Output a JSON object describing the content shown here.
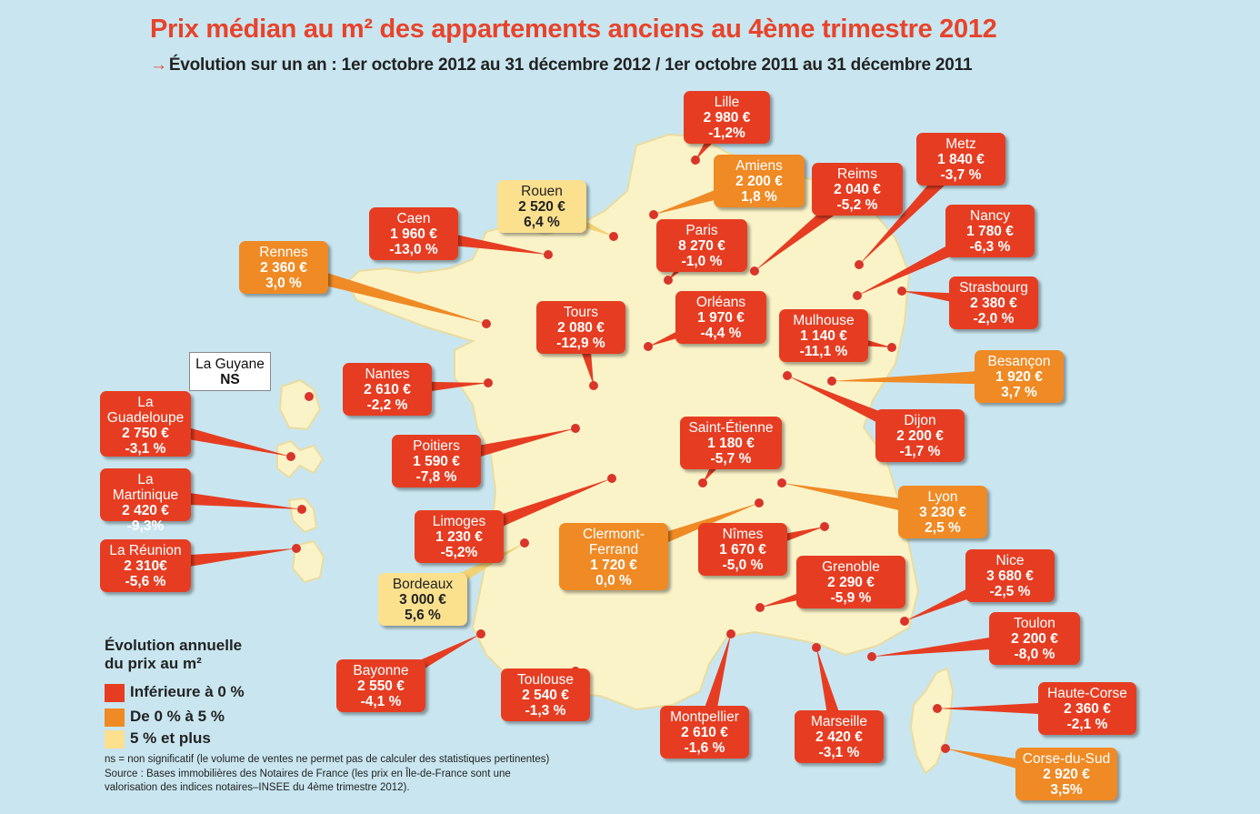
{
  "title": "Prix médian au m² des appartements anciens au 4ème trimestre 2012",
  "subtitle": "Évolution sur un an : 1er octobre 2012 au 31 décembre 2012 / 1er octobre 2011 au 31 décembre 2011",
  "colors": {
    "negative": "#e63d22",
    "zero_to_five": "#ef8a25",
    "five_plus": "#fbe08e",
    "sea": "#c9e6f0",
    "land": "#fbf3c8",
    "title": "#e8432b"
  },
  "legend": {
    "title_line1": "Évolution annuelle",
    "title_line2": "du prix au m²",
    "items": [
      {
        "label": "Inférieure à 0 %",
        "color": "#e63d22"
      },
      {
        "label": "De 0 % à 5 %",
        "color": "#ef8a25"
      },
      {
        "label": "5 % et plus",
        "color": "#fbe08e"
      }
    ]
  },
  "footnote": {
    "ns": "ns = non significatif (le volume de ventes ne permet pas de calculer des statistiques pertinentes)",
    "source1": "Source : Bases immobilières des Notaires de France (les prix en Île-de-France sont une",
    "source2": "valorisation des indices notaires–INSEE du 4ème trimestre 2012)."
  },
  "cities": [
    {
      "id": "lille",
      "city": "Lille",
      "price": "2 980 €",
      "pct": "-1,2%",
      "category": "negative"
    },
    {
      "id": "amiens",
      "city": "Amiens",
      "price": "2 200 €",
      "pct": "1,8 %",
      "category": "zero_to_five"
    },
    {
      "id": "reims",
      "city": "Reims",
      "price": "2 040 €",
      "pct": "-5,2 %",
      "category": "negative"
    },
    {
      "id": "metz",
      "city": "Metz",
      "price": "1 840 €",
      "pct": "-3,7 %",
      "category": "negative"
    },
    {
      "id": "rouen",
      "city": "Rouen",
      "price": "2 520 €",
      "pct": "6,4 %",
      "category": "five_plus"
    },
    {
      "id": "caen",
      "city": "Caen",
      "price": "1 960 €",
      "pct": "-13,0 %",
      "category": "negative"
    },
    {
      "id": "paris",
      "city": "Paris",
      "price": "8 270 €",
      "pct": "-1,0 %",
      "category": "negative"
    },
    {
      "id": "nancy",
      "city": "Nancy",
      "price": "1 780 €",
      "pct": "-6,3 %",
      "category": "negative"
    },
    {
      "id": "rennes",
      "city": "Rennes",
      "price": "2 360 €",
      "pct": "3,0 %",
      "category": "zero_to_five"
    },
    {
      "id": "strasbourg",
      "city": "Strasbourg",
      "price": "2 380 €",
      "pct": "-2,0 %",
      "category": "negative"
    },
    {
      "id": "tours",
      "city": "Tours",
      "price": "2 080 €",
      "pct": "-12,9 %",
      "category": "negative"
    },
    {
      "id": "orleans",
      "city": "Orléans",
      "price": "1 970 €",
      "pct": "-4,4 %",
      "category": "negative"
    },
    {
      "id": "mulhouse",
      "city": "Mulhouse",
      "price": "1 140 €",
      "pct": "-11,1 %",
      "category": "negative"
    },
    {
      "id": "besancon",
      "city": "Besançon",
      "price": "1 920 €",
      "pct": "3,7 %",
      "category": "zero_to_five"
    },
    {
      "id": "guyane",
      "city": "La Guyane",
      "price": "NS",
      "pct": "",
      "category": "ns"
    },
    {
      "id": "nantes",
      "city": "Nantes",
      "price": "2 610 €",
      "pct": "-2,2 %",
      "category": "negative"
    },
    {
      "id": "guadeloupe",
      "city": "La Guadeloupe",
      "price": "2 750 €",
      "pct": "-3,1 %",
      "category": "negative"
    },
    {
      "id": "dijon",
      "city": "Dijon",
      "price": "2 200 €",
      "pct": "-1,7 %",
      "category": "negative"
    },
    {
      "id": "saint_etienne",
      "city": "Saint-Étienne",
      "price": "1 180 €",
      "pct": "-5,7 %",
      "category": "negative"
    },
    {
      "id": "poitiers",
      "city": "Poitiers",
      "price": "1 590 €",
      "pct": "-7,8 %",
      "category": "negative"
    },
    {
      "id": "martinique",
      "city": "La Martinique",
      "price": "2 420 €",
      "pct": "-9,3%",
      "category": "negative"
    },
    {
      "id": "lyon",
      "city": "Lyon",
      "price": "3 230 €",
      "pct": "2,5 %",
      "category": "zero_to_five"
    },
    {
      "id": "limoges",
      "city": "Limoges",
      "price": "1 230 €",
      "pct": "-5,2%",
      "category": "negative"
    },
    {
      "id": "clermont",
      "city": "Clermont-Ferrand",
      "price": "1 720 €",
      "pct": "0,0 %",
      "category": "zero_to_five"
    },
    {
      "id": "nimes",
      "city": "Nîmes",
      "price": "1 670 €",
      "pct": "-5,0 %",
      "category": "negative"
    },
    {
      "id": "reunion",
      "city": "La Réunion",
      "price": "2 310€",
      "pct": "-5,6 %",
      "category": "negative"
    },
    {
      "id": "nice",
      "city": "Nice",
      "price": "3 680 €",
      "pct": "-2,5 %",
      "category": "negative"
    },
    {
      "id": "grenoble",
      "city": "Grenoble",
      "price": "2 290 €",
      "pct": "-5,9 %",
      "category": "negative"
    },
    {
      "id": "bordeaux",
      "city": "Bordeaux",
      "price": "3 000 €",
      "pct": "5,6 %",
      "category": "five_plus"
    },
    {
      "id": "toulon",
      "city": "Toulon",
      "price": "2 200 €",
      "pct": "-8,0 %",
      "category": "negative"
    },
    {
      "id": "bayonne",
      "city": "Bayonne",
      "price": "2 550 €",
      "pct": "-4,1 %",
      "category": "negative"
    },
    {
      "id": "toulouse",
      "city": "Toulouse",
      "price": "2 540 €",
      "pct": "-1,3 %",
      "category": "negative"
    },
    {
      "id": "haute_corse",
      "city": "Haute-Corse",
      "price": "2 360 €",
      "pct": "-2,1 %",
      "category": "negative"
    },
    {
      "id": "montpellier",
      "city": "Montpellier",
      "price": "2 610 €",
      "pct": "-1,6 %",
      "category": "negative"
    },
    {
      "id": "marseille",
      "city": "Marseille",
      "price": "2 420 €",
      "pct": "-3,1 %",
      "category": "negative"
    },
    {
      "id": "corse_du_sud",
      "city": "Corse-du-Sud",
      "price": "2 920 €",
      "pct": "3,5%",
      "category": "zero_to_five"
    }
  ]
}
